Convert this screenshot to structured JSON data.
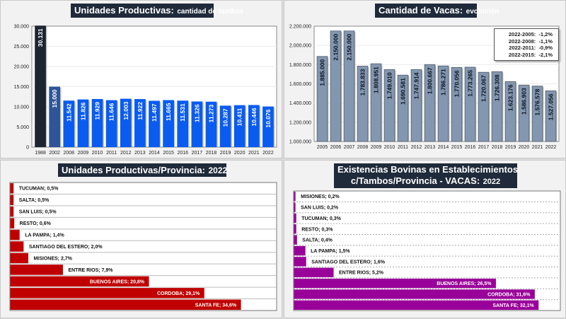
{
  "panels": {
    "tambos": {
      "title_main": "Unidades Productivas:",
      "title_sub": "cantidad de tambos"
    },
    "vacas": {
      "title_main": "Cantidad de Vacas:",
      "title_sub": "evolución",
      "legend": [
        "2022-2005:  -1,2%",
        "2022-2008:  -1,1%",
        "2022-2011:  -0,9%",
        "2022-2015:  -2,1%"
      ]
    },
    "prov_tambos": {
      "title_main": "Unidades Productivas/Provincia:",
      "title_sub": "2022"
    },
    "prov_vacas": {
      "title_line1": "Existencias Bovinas en Establecimientos",
      "title_main": "c/Tambos/Provincia - VACAS:",
      "title_sub": "2022"
    }
  },
  "chart_data": [
    {
      "type": "bar",
      "title": "Unidades Productivas: cantidad de tambos",
      "categories": [
        "1988",
        "2002",
        "2008",
        "2009",
        "2010",
        "2011",
        "2012",
        "2013",
        "2014",
        "2015",
        "2016",
        "2017",
        "2018",
        "2019",
        "2020",
        "2021",
        "2022"
      ],
      "values": [
        30131,
        15000,
        11542,
        11826,
        11929,
        11646,
        12003,
        11922,
        11497,
        11665,
        11531,
        11326,
        11273,
        10287,
        10411,
        10446,
        10076
      ],
      "labels": [
        "30.131",
        "15.000",
        "11.542",
        "11.826",
        "11.929",
        "11.646",
        "12.003",
        "11.922",
        "11.497",
        "11.665",
        "11.531",
        "11.326",
        "11.273",
        "10.287",
        "10.411",
        "10.446",
        "10.076"
      ],
      "colors": [
        "#1c2530",
        "#2f5597",
        "#0a5cf0",
        "#0a5cf0",
        "#0a5cf0",
        "#0a5cf0",
        "#0a5cf0",
        "#0a5cf0",
        "#0a5cf0",
        "#0a5cf0",
        "#0a5cf0",
        "#0a5cf0",
        "#0a5cf0",
        "#0a5cf0",
        "#0a5cf0",
        "#0a5cf0",
        "#0a5cf0"
      ],
      "yticks": [
        "0",
        "5.000",
        "10.000",
        "15.000",
        "20.000",
        "25.000",
        "30.000"
      ],
      "ylim": [
        0,
        30000
      ],
      "xlabel": "",
      "ylabel": "",
      "grid": true
    },
    {
      "type": "bar",
      "title": "Cantidad de Vacas: evolución",
      "categories": [
        "2005",
        "2006",
        "2007",
        "2008",
        "2009",
        "2010",
        "2011",
        "2012",
        "2013",
        "2014",
        "2015",
        "2016",
        "2017",
        "2018",
        "2019",
        "2020",
        "2021",
        "2022"
      ],
      "values": [
        1885000,
        2150000,
        2150000,
        1783833,
        1808951,
        1749010,
        1690581,
        1747914,
        1800667,
        1786271,
        1770056,
        1773265,
        1720067,
        1726308,
        1623176,
        1586903,
        1576578,
        1527056
      ],
      "labels": [
        "1.885.000",
        "2.150.000",
        "2.150.000",
        "1.783.833",
        "1.808.951",
        "1.749.010",
        "1.690.581",
        "1.747.914",
        "1.800.667",
        "1.786.271",
        "1.770.056",
        "1.773.265",
        "1.720.067",
        "1.726.308",
        "1.623.176",
        "1.586.903",
        "1.576.578",
        "1.527.056"
      ],
      "color": "#8497b0",
      "yticks": [
        "1.000.000",
        "1.200.000",
        "1.400.000",
        "1.600.000",
        "1.800.000",
        "2.000.000",
        "2.200.000"
      ],
      "ylim": [
        1000000,
        2200000
      ],
      "annotations": [
        "2022-2005: -1,2%",
        "2022-2008: -1,1%",
        "2022-2011: -0,9%",
        "2022-2015: -2,1%"
      ],
      "legend_position": "top-right",
      "grid": true
    },
    {
      "type": "bar",
      "orientation": "horizontal",
      "title": "Unidades Productivas/Provincia: 2022",
      "categories": [
        "TUCUMAN",
        "SALTA",
        "SAN LUIS",
        "RESTO",
        "LA PAMPA",
        "SANTIAGO DEL ESTERO",
        "MISIONES",
        "ENTRE RIOS",
        "BUENOS AIRES",
        "CORDOBA",
        "SANTA FE"
      ],
      "values": [
        0.5,
        0.5,
        0.5,
        0.6,
        1.4,
        2.0,
        2.7,
        7.9,
        20.8,
        29.1,
        34.6
      ],
      "labels": [
        "TUCUMAN; 0,5%",
        "SALTA; 0,5%",
        "SAN LUIS; 0,5%",
        "RESTO; 0,6%",
        "LA PAMPA; 1,4%",
        "SANTIAGO DEL ESTERO; 2,0%",
        "MISIONES; 2,7%",
        "ENTRE RIOS; 7,9%",
        "BUENOS AIRES; 20,8%",
        "CORDOBA; 29,1%",
        "SANTA FE; 34,6%"
      ],
      "color": "#c00000",
      "unit": "%",
      "xlim": [
        0,
        40
      ]
    },
    {
      "type": "bar",
      "orientation": "horizontal",
      "title": "Existencias Bovinas en Establecimientos c/Tambos/Provincia - VACAS: 2022",
      "categories": [
        "MISIONES",
        "SAN LUIS",
        "TUCUMAN",
        "RESTO",
        "SALTA",
        "LA PAMPA",
        "SANTIAGO DEL ESTERO",
        "ENTRE RIOS",
        "BUENOS AIRES",
        "CORDOBA",
        "SANTA FE"
      ],
      "values": [
        0.2,
        0.2,
        0.3,
        0.3,
        0.4,
        1.5,
        1.6,
        5.2,
        26.5,
        31.6,
        32.1
      ],
      "labels": [
        "MISIONES; 0,2%",
        "SAN LUIS; 0,2%",
        "TUCUMAN; 0,3%",
        "RESTO; 0,3%",
        "SALTA; 0,4%",
        "LA PAMPA; 1,5%",
        "SANTIAGO DEL ESTERO; 1,6%",
        "ENTRE RIOS; 5,2%",
        "BUENOS AIRES; 26,5%",
        "CORDOBA; 31,6%",
        "SANTA FE; 32,1%"
      ],
      "color": "#990099",
      "unit": "%",
      "xlim": [
        0,
        35
      ]
    }
  ]
}
